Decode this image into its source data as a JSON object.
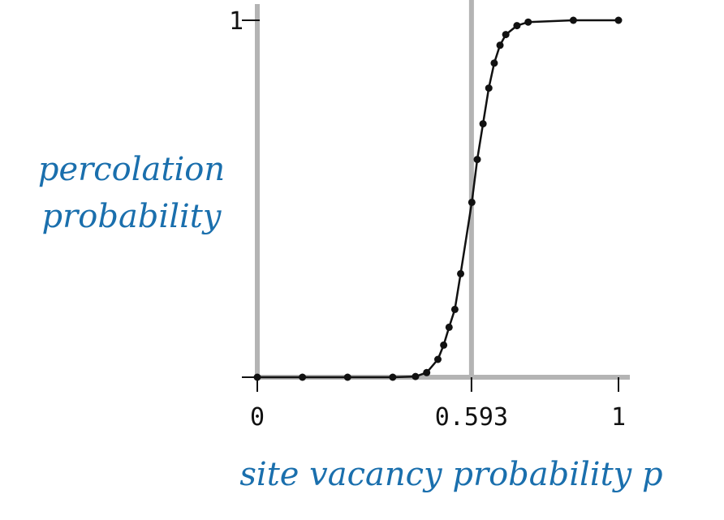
{
  "chart_data": {
    "type": "line",
    "xlabel": "site vacancy probability p",
    "ylabel_lines": [
      "percolation",
      "probability"
    ],
    "xlim": [
      0,
      1
    ],
    "ylim": [
      0,
      1
    ],
    "x_ticks": [
      {
        "value": 0,
        "label": "0"
      },
      {
        "value": 0.593,
        "label": "0.593"
      },
      {
        "value": 1,
        "label": "1"
      }
    ],
    "y_ticks": [
      {
        "value": 0,
        "label": ""
      },
      {
        "value": 1,
        "label": "1"
      }
    ],
    "threshold_line": 0.593,
    "series": [
      {
        "x": [
          0.0,
          0.125,
          0.25,
          0.375,
          0.438,
          0.469,
          0.5,
          0.516,
          0.531,
          0.547,
          0.563,
          0.594,
          0.609,
          0.625,
          0.641,
          0.656,
          0.672,
          0.688,
          0.719,
          0.75,
          0.875,
          1.0
        ],
        "y": [
          0.0,
          0.0,
          0.0,
          0.0,
          0.002,
          0.013,
          0.05,
          0.09,
          0.14,
          0.19,
          0.29,
          0.49,
          0.61,
          0.71,
          0.81,
          0.88,
          0.93,
          0.96,
          0.985,
          0.995,
          1.0,
          1.0
        ]
      }
    ],
    "colors": {
      "axis": "#b4b4b4",
      "threshold": "#b4b4b4",
      "line": "#111111",
      "points": "#111111",
      "labels": "#1a6fad"
    }
  }
}
